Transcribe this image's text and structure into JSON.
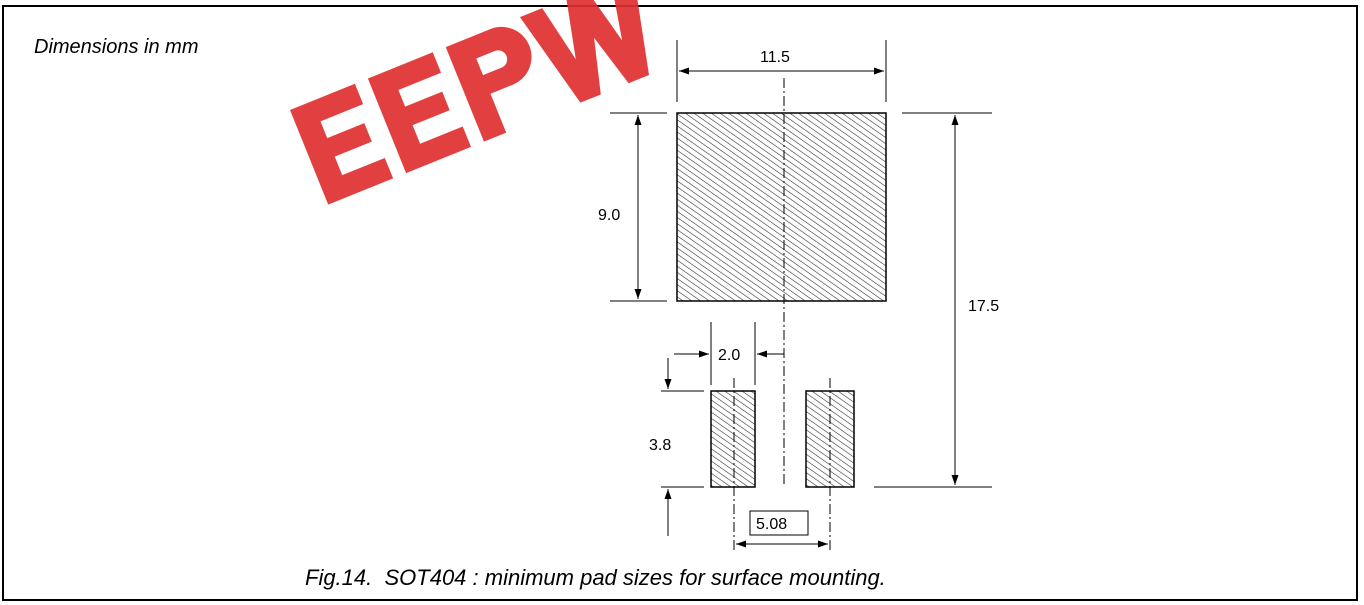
{
  "units_note": "Dimensions in mm",
  "caption": "Fig.14.  SOT404 : minimum pad sizes for surface mounting.",
  "watermark_text": "EEPW",
  "colors": {
    "line": "#000000",
    "hatch": "#333333",
    "watermark": "#e03030"
  },
  "dimensions": {
    "top_pad_width": "11.5",
    "top_pad_height": "9.0",
    "overall_height": "17.5",
    "lead_offset": "2.0",
    "lead_pad_height": "3.8",
    "lead_pitch": "5.08"
  }
}
